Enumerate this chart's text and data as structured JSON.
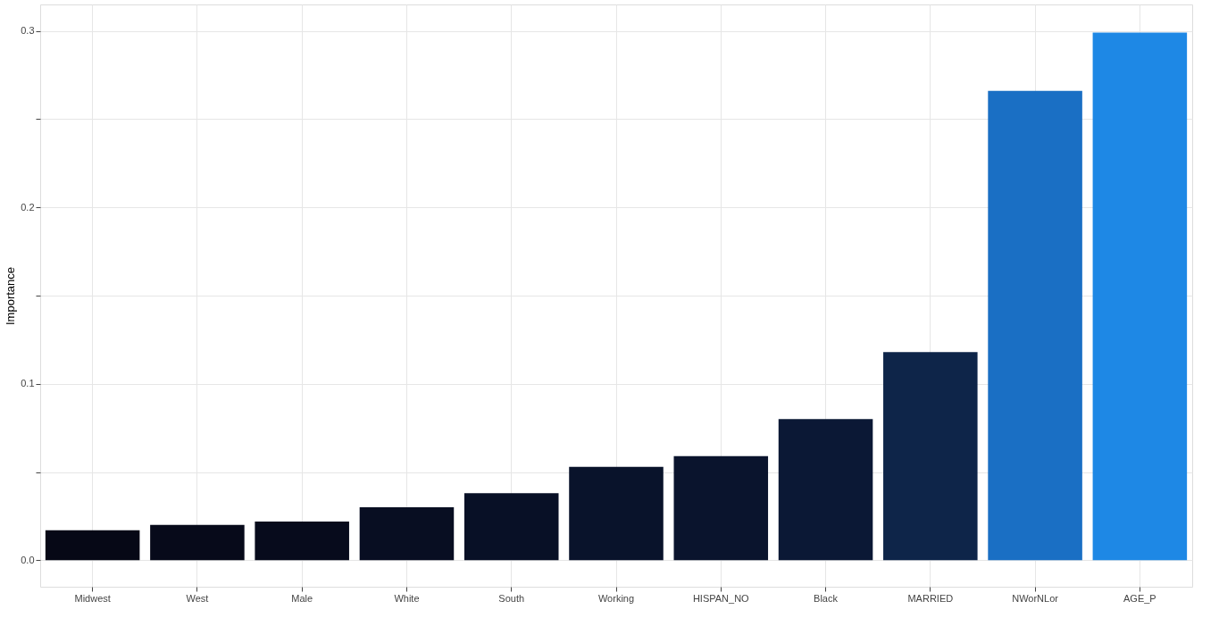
{
  "chart_data": {
    "type": "bar",
    "ylabel": "Importance",
    "categories": [
      "Midwest",
      "West",
      "Male",
      "White",
      "South",
      "Working",
      "HISPAN_NO",
      "Black",
      "MARRIED",
      "NWorNLor",
      "AGE_P"
    ],
    "values": [
      0.017,
      0.02,
      0.022,
      0.03,
      0.038,
      0.053,
      0.059,
      0.08,
      0.118,
      0.266,
      0.299
    ],
    "colors": [
      "#060816",
      "#070a1a",
      "#070b1c",
      "#080e22",
      "#081026",
      "#09132b",
      "#0a142d",
      "#0b1835",
      "#0e2549",
      "#1a6fc4",
      "#1e88e5"
    ],
    "ylim": [
      -0.015,
      0.315
    ],
    "yticks": [
      {
        "value": 0,
        "label": "0.0"
      },
      {
        "value": 0.05,
        "label": null
      },
      0.1,
      {
        "value": 0.15,
        "label": null
      },
      0.2,
      {
        "value": 0.25,
        "label": null
      },
      0.3
    ],
    "grid": true
  }
}
